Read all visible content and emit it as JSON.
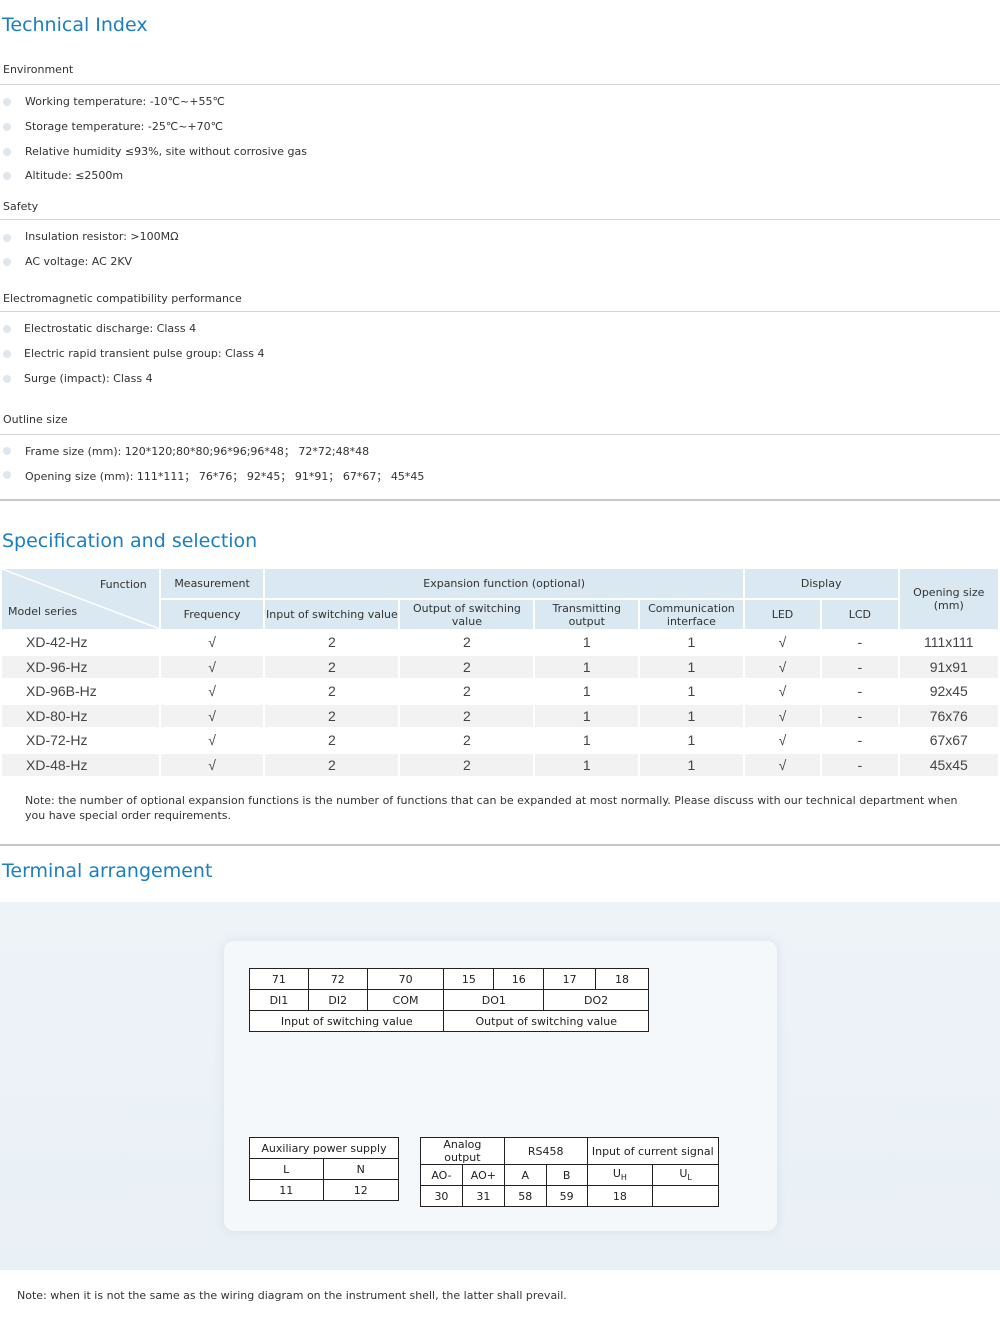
{
  "technical": {
    "title": "Technical Index",
    "environment": {
      "heading": "Environment",
      "items": [
        "Working temperature:  -10℃~+55℃",
        "Storage temperature: -25℃~+70℃",
        "Relative humidity  ≤93%, site without corrosive gas",
        "Altitude: ≤2500m"
      ]
    },
    "safety": {
      "heading": "Safety",
      "items": [
        "Insulation resistor: >100MΩ",
        "AC voltage:  AC 2KV"
      ]
    },
    "emc": {
      "heading": "Electromagnetic compatibility performance",
      "items": [
        "Electrostatic discharge: Class 4",
        "Electric rapid transient pulse group: Class 4",
        "Surge (impact): Class 4"
      ]
    },
    "outline": {
      "heading": "Outline size",
      "items": [
        "Frame size (mm): 120*120;80*80;96*96;96*48； 72*72;48*48",
        "Opening size (mm): 111*111； 76*76； 92*45； 91*91； 67*67； 45*45"
      ]
    }
  },
  "spec": {
    "title": "Specification and selection",
    "header": {
      "function": "Function",
      "model_series": "Model series",
      "measurement": "Measurement",
      "frequency": "Frequency",
      "expansion": "Expansion function (optional)",
      "input_switching": "Input of switching value",
      "output_switching": "Output of switching value",
      "transmitting": "Transmitting output",
      "communication": "Communication interface",
      "display": "Display",
      "led": "LED",
      "lcd": "LCD",
      "opening": "Opening size (mm)"
    },
    "rows": [
      {
        "model": "XD-42-Hz",
        "freq": "√",
        "in": "2",
        "out": "2",
        "trans": "1",
        "comm": "1",
        "led": "√",
        "lcd": "-",
        "opening": "111x111"
      },
      {
        "model": "XD-96-Hz",
        "freq": "√",
        "in": "2",
        "out": "2",
        "trans": "1",
        "comm": "1",
        "led": "√",
        "lcd": "-",
        "opening": "91x91"
      },
      {
        "model": "XD-96B-Hz",
        "freq": "√",
        "in": "2",
        "out": "2",
        "trans": "1",
        "comm": "1",
        "led": "√",
        "lcd": "-",
        "opening": "92x45"
      },
      {
        "model": "XD-80-Hz",
        "freq": "√",
        "in": "2",
        "out": "2",
        "trans": "1",
        "comm": "1",
        "led": "√",
        "lcd": "-",
        "opening": "76x76"
      },
      {
        "model": "XD-72-Hz",
        "freq": "√",
        "in": "2",
        "out": "2",
        "trans": "1",
        "comm": "1",
        "led": "√",
        "lcd": "-",
        "opening": "67x67"
      },
      {
        "model": "XD-48-Hz",
        "freq": "√",
        "in": "2",
        "out": "2",
        "trans": "1",
        "comm": "1",
        "led": "√",
        "lcd": "-",
        "opening": "45x45"
      }
    ],
    "note": "Note: the number of optional expansion functions is the number of functions that can be expanded at most normally. Please discuss with our technical department when you have special order requirements."
  },
  "terminal": {
    "title": "Terminal arrangement",
    "top": {
      "numbers": [
        "71",
        "72",
        "70",
        "15",
        "16",
        "17",
        "18"
      ],
      "labels": [
        "DI1",
        "DI2",
        "COM",
        "DO1",
        "DO2"
      ],
      "groups": [
        "Input of switching value",
        "Output of switching value"
      ]
    },
    "aux": {
      "title": "Auxiliary power supply",
      "labels": [
        "L",
        "N"
      ],
      "numbers": [
        "11",
        "12"
      ]
    },
    "signals": {
      "groups": [
        "Analog output",
        "RS458",
        "Input of current signal"
      ],
      "labels": [
        "AO-",
        "AO+",
        "A",
        "B",
        "U",
        "U"
      ],
      "subs": [
        "H",
        "L"
      ],
      "numbers": [
        "30",
        "31",
        "58",
        "59",
        "18",
        ""
      ]
    },
    "note": "Note: when it is not the same as the wiring diagram on the instrument shell, the latter shall prevail."
  }
}
